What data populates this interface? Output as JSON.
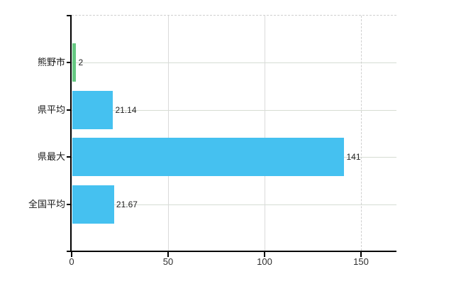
{
  "chart_data": {
    "type": "bar",
    "orientation": "horizontal",
    "title": "",
    "categories": [
      "熊野市",
      "県平均",
      "県最大",
      "全国平均"
    ],
    "values": [
      2,
      21.14,
      141,
      21.67
    ],
    "value_labels": [
      "2",
      "21.14",
      "141",
      "21.67"
    ],
    "bar_colors": [
      "#66c882",
      "#45c1f0",
      "#45c1f0",
      "#45c1f0"
    ],
    "x_ticks": [
      0,
      50,
      100,
      150
    ],
    "x_tick_labels": [
      "0",
      "50",
      "100",
      "150"
    ],
    "xlim": [
      0,
      168.4
    ],
    "grid": true,
    "grid_dashed_at_tick": 150,
    "top_border_dashed": true,
    "legend": false,
    "xlabel": "",
    "ylabel": ""
  },
  "styles": {
    "background": "#ffffff",
    "bar_blue": "#45c1f0",
    "bar_green": "#66c882",
    "axis_color": "#000000",
    "grid_color_horizontal": "#d6dcd3",
    "grid_color_vertical": "#dadada",
    "grid_color_dashed": "#cfcfcf",
    "category_text_color": "#1a1a1a",
    "value_text_color": "#1f1f1f",
    "tick_text_color": "#2e2e2e"
  }
}
